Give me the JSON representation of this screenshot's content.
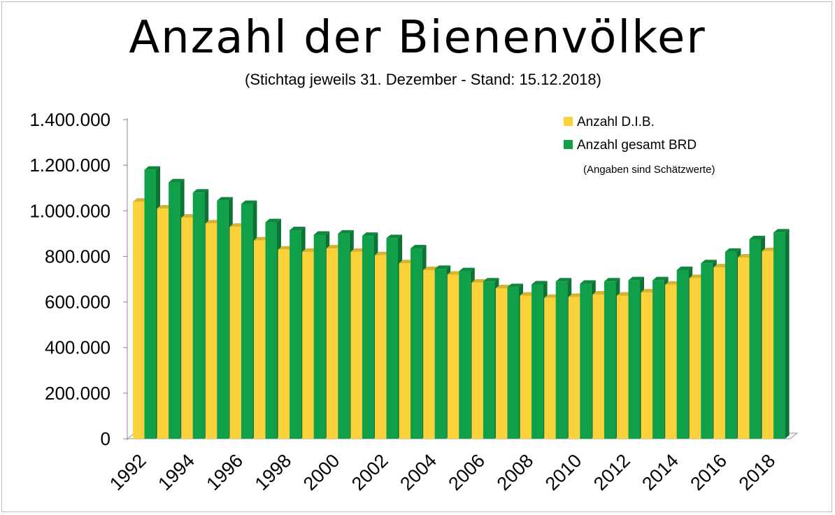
{
  "chart_data": {
    "type": "bar",
    "title": "Anzahl der Bienenvölker",
    "subtitle": "(Stichtag jeweils 31. Dezember - Stand: 15.12.2018)",
    "xlabel": "",
    "ylabel": "",
    "ylim": [
      0,
      1400000
    ],
    "yticks": [
      {
        "value": 0,
        "label": "0"
      },
      {
        "value": 200000,
        "label": "200.000"
      },
      {
        "value": 400000,
        "label": "400.000"
      },
      {
        "value": 600000,
        "label": "600.000"
      },
      {
        "value": 800000,
        "label": "800.000"
      },
      {
        "value": 1000000,
        "label": "1.000.000"
      },
      {
        "value": 1200000,
        "label": "1.200.000"
      },
      {
        "value": 1400000,
        "label": "1.400.000"
      }
    ],
    "categories": [
      "1992",
      "1993",
      "1994",
      "1995",
      "1996",
      "1997",
      "1998",
      "1999",
      "2000",
      "2001",
      "2002",
      "2003",
      "2004",
      "2005",
      "2006",
      "2007",
      "2008",
      "2009",
      "2010",
      "2011",
      "2012",
      "2013",
      "2014",
      "2015",
      "2016",
      "2017",
      "2018"
    ],
    "xtick_labels": [
      "1992",
      "1994",
      "1996",
      "1998",
      "2000",
      "2002",
      "2004",
      "2006",
      "2008",
      "2010",
      "2012",
      "2014",
      "2016",
      "2018"
    ],
    "series": [
      {
        "name": "Anzahl D.I.B.",
        "color": "#fcd23a",
        "values": [
          1040000,
          1010000,
          970000,
          945000,
          930000,
          870000,
          830000,
          820000,
          835000,
          820000,
          805000,
          770000,
          740000,
          720000,
          685000,
          660000,
          628000,
          618000,
          622000,
          633000,
          628000,
          642000,
          676000,
          705000,
          752000,
          795000,
          823000
        ]
      },
      {
        "name": "Anzahl gesamt BRD",
        "color": "#11a04a",
        "values": [
          1180000,
          1125000,
          1080000,
          1045000,
          1030000,
          950000,
          915000,
          895000,
          900000,
          890000,
          880000,
          835000,
          745000,
          735000,
          690000,
          665000,
          677000,
          690000,
          680000,
          690000,
          695000,
          695000,
          740000,
          770000,
          820000,
          875000,
          905000
        ]
      }
    ],
    "legend_position": "top-right",
    "annotation": "(Angaben sind Schätzwerte)"
  }
}
